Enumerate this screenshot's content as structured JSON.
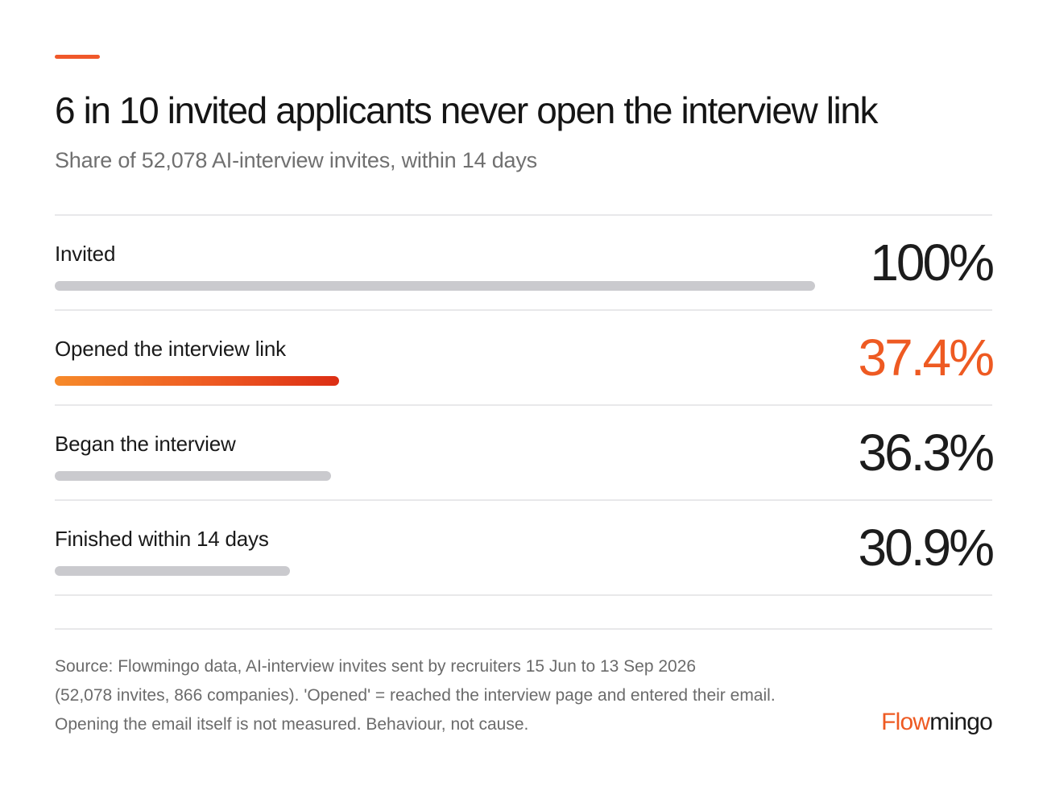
{
  "colors": {
    "accent": "#ee5a22",
    "bar_neutral": "#cacace",
    "divider": "#e8e8ea"
  },
  "title": "6 in 10 invited applicants never open the interview link",
  "subtitle": "Share of 52,078 AI-interview invites, within 14 days",
  "chart_data": {
    "type": "bar",
    "orientation": "horizontal",
    "categories": [
      "Invited",
      "Opened the interview link",
      "Began the interview",
      "Finished within 14 days"
    ],
    "values": [
      100,
      37.4,
      36.3,
      30.9
    ],
    "value_labels": [
      "100%",
      "37.4%",
      "36.3%",
      "30.9%"
    ],
    "highlight_index": 1,
    "xlim": [
      0,
      100
    ],
    "unit": "%",
    "grid": false,
    "legend": "none"
  },
  "footer": {
    "source_lines": [
      "Source: Flowmingo data, AI-interview invites sent by recruiters 15 Jun to 13 Sep 2026",
      "(52,078 invites, 866 companies). 'Opened' = reached the interview page and entered their email.",
      "Opening the email itself is not measured. Behaviour, not cause."
    ],
    "brand_part1": "Flow",
    "brand_part2": "mingo"
  }
}
